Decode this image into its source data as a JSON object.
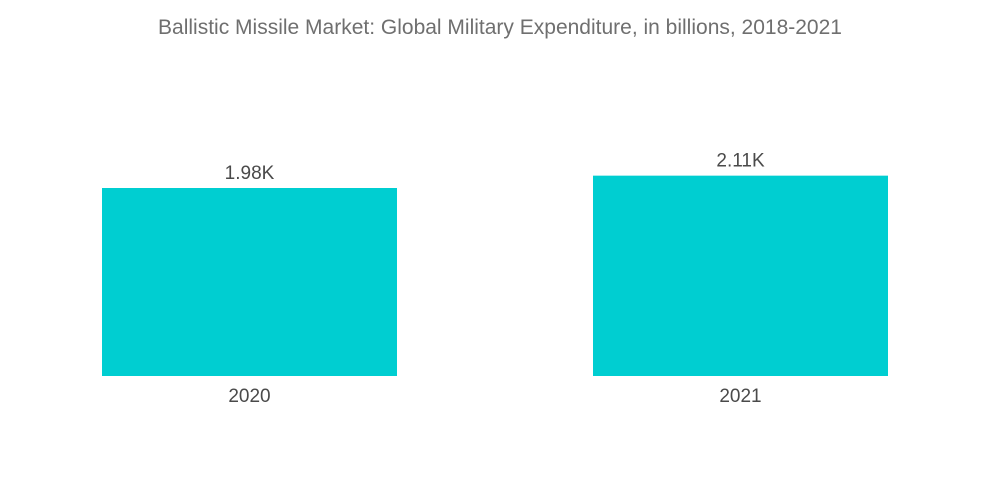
{
  "chart_data": {
    "type": "bar",
    "title": "Ballistic Missile Market: Global Military Expenditure, in billions, 2018-2021",
    "categories": [
      "2020",
      "2021"
    ],
    "values": [
      1980,
      2110
    ],
    "data_labels": [
      "1.98K",
      "2.11K"
    ],
    "xlabel": "",
    "ylabel": "",
    "ylim": [
      0,
      2500
    ],
    "grid": false,
    "legend": "none",
    "bar_color": "#00CED1"
  }
}
